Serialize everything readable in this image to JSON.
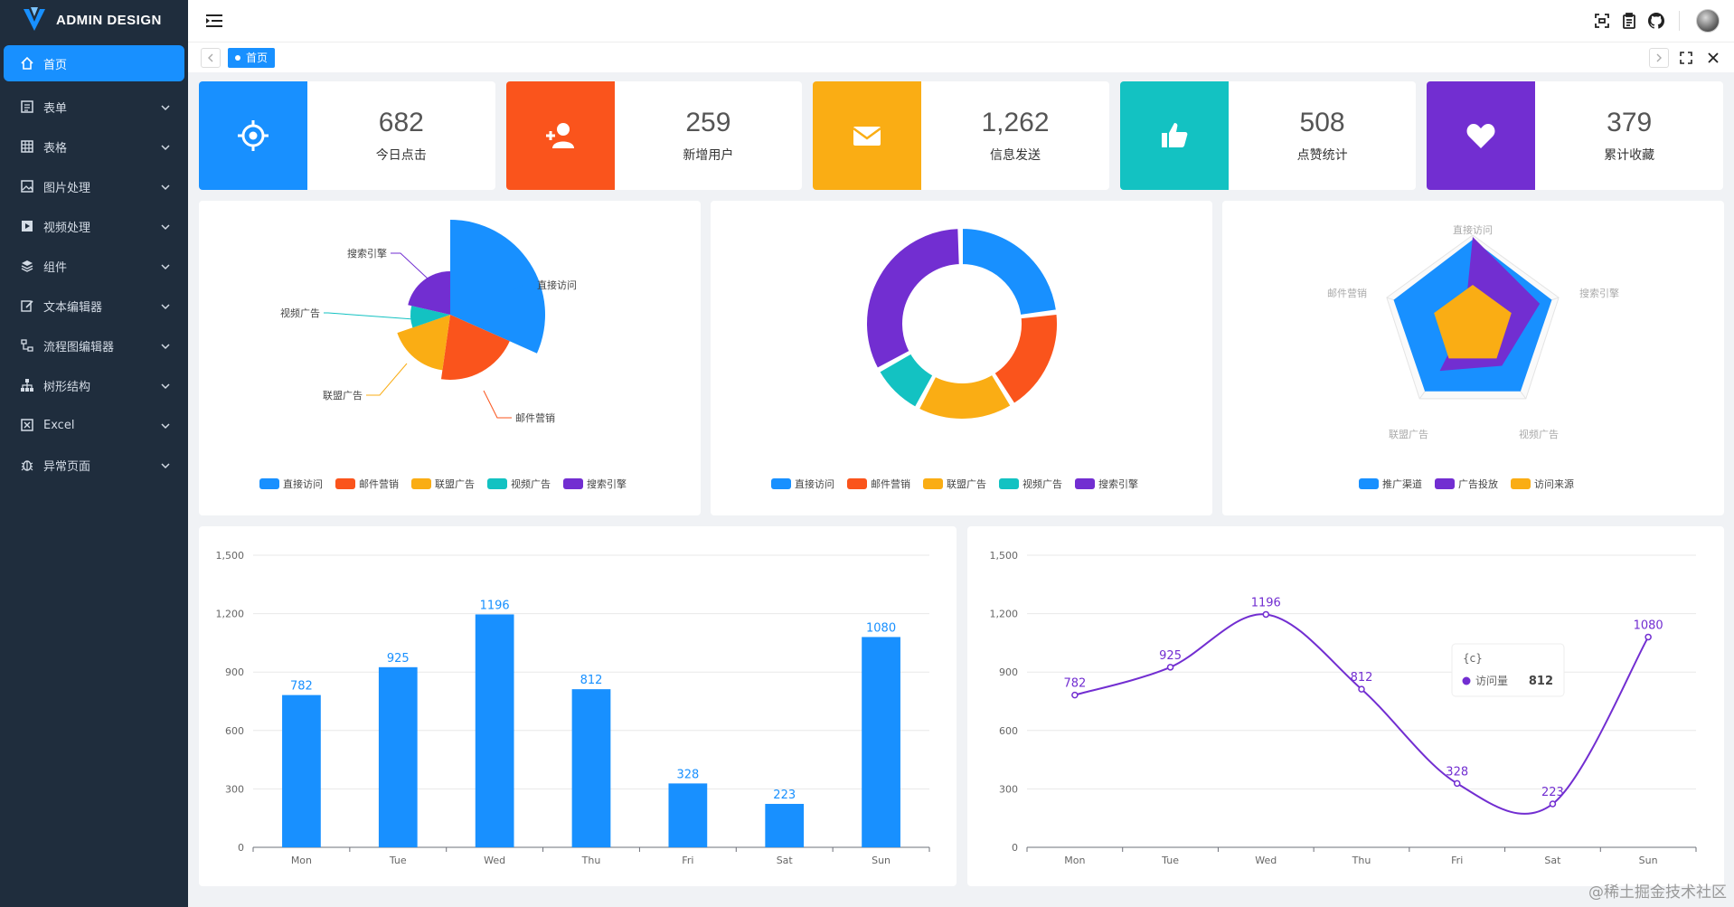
{
  "app": {
    "logo_text": "ADMIN DESIGN"
  },
  "sidebar": {
    "items": [
      {
        "label": "首页",
        "icon": "home-icon",
        "active": true
      },
      {
        "label": "表单",
        "icon": "form-icon"
      },
      {
        "label": "表格",
        "icon": "table-icon"
      },
      {
        "label": "图片处理",
        "icon": "image-icon"
      },
      {
        "label": "视频处理",
        "icon": "video-icon"
      },
      {
        "label": "组件",
        "icon": "layers-icon"
      },
      {
        "label": "文本编辑器",
        "icon": "edit-icon"
      },
      {
        "label": "流程图编辑器",
        "icon": "flow-icon"
      },
      {
        "label": "树形结构",
        "icon": "tree-icon"
      },
      {
        "label": "Excel",
        "icon": "excel-icon"
      },
      {
        "label": "异常页面",
        "icon": "bug-icon"
      }
    ]
  },
  "tabs": {
    "active_tab": "首页"
  },
  "stats": [
    {
      "value": "682",
      "label": "今日点击",
      "color": "#1890ff",
      "icon": "target-icon"
    },
    {
      "value": "259",
      "label": "新增用户",
      "color": "#fa541c",
      "icon": "user-add-icon"
    },
    {
      "value": "1,262",
      "label": "信息发送",
      "color": "#faad14",
      "icon": "mail-icon"
    },
    {
      "value": "508",
      "label": "点赞统计",
      "color": "#13c2c2",
      "icon": "like-icon"
    },
    {
      "value": "379",
      "label": "累计收藏",
      "color": "#722ed1",
      "icon": "heart-icon"
    }
  ],
  "colors": {
    "blue": "#1890ff",
    "red": "#fa541c",
    "orange": "#faad14",
    "cyan": "#13c2c2",
    "purple": "#722ed1"
  },
  "chart_data": [
    {
      "type": "pie",
      "subtype": "rose",
      "categories": [
        "直接访问",
        "邮件营销",
        "联盟广告",
        "视频广告",
        "搜索引擎"
      ],
      "legend": [
        "直接访问",
        "邮件营销",
        "联盟广告",
        "视频广告",
        "搜索引擎"
      ]
    },
    {
      "type": "pie",
      "subtype": "donut",
      "categories": [
        "直接访问",
        "邮件营销",
        "联盟广告",
        "视频广告",
        "搜索引擎"
      ],
      "legend": [
        "直接访问",
        "邮件营销",
        "联盟广告",
        "视频广告",
        "搜索引擎"
      ]
    },
    {
      "type": "radar",
      "indicators": [
        "直接访问",
        "搜索引擎",
        "视频广告",
        "联盟广告",
        "邮件营销"
      ],
      "legend": [
        "推广渠道",
        "广告投放",
        "访问来源"
      ]
    },
    {
      "type": "bar",
      "categories": [
        "Mon",
        "Tue",
        "Wed",
        "Thu",
        "Fri",
        "Sat",
        "Sun"
      ],
      "values": [
        782,
        925,
        1196,
        812,
        328,
        223,
        1080
      ],
      "ylim": [
        0,
        1500
      ],
      "yticks": [
        0,
        300,
        600,
        900,
        1200,
        1500
      ],
      "ytick_labels": [
        "0",
        "300",
        "600",
        "900",
        "1,200",
        "1,500"
      ],
      "grid": true
    },
    {
      "type": "line",
      "categories": [
        "Mon",
        "Tue",
        "Wed",
        "Thu",
        "Fri",
        "Sat",
        "Sun"
      ],
      "values": [
        782,
        925,
        1196,
        812,
        328,
        223,
        1080
      ],
      "ylim": [
        0,
        1500
      ],
      "yticks": [
        0,
        300,
        600,
        900,
        1200,
        1500
      ],
      "ytick_labels": [
        "0",
        "300",
        "600",
        "900",
        "1,200",
        "1,500"
      ],
      "smooth": true,
      "grid": true,
      "tooltip": {
        "title": "{c}",
        "series": "访问量",
        "value": "812"
      }
    }
  ],
  "watermark": "@稀土掘金技术社区"
}
